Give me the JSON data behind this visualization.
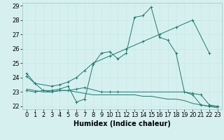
{
  "title": "",
  "xlabel": "Humidex (Indice chaleur)",
  "ylabel": "",
  "bg_color": "#d6f0f0",
  "grid_color": "#c8e8e8",
  "line_color": "#1a7a6e",
  "xlim": [
    -0.5,
    23.5
  ],
  "ylim": [
    21.8,
    29.2
  ],
  "yticks": [
    22,
    23,
    24,
    25,
    26,
    27,
    28,
    29
  ],
  "xticks": [
    0,
    1,
    2,
    3,
    4,
    5,
    6,
    7,
    8,
    9,
    10,
    11,
    12,
    13,
    14,
    15,
    16,
    17,
    18,
    19,
    20,
    21,
    22,
    23
  ],
  "series": [
    {
      "x": [
        0,
        1,
        2,
        3,
        4,
        5,
        6,
        7,
        8,
        9,
        10,
        11,
        12,
        13,
        14,
        15,
        16,
        17,
        18,
        19,
        20,
        21,
        22,
        23
      ],
      "y": [
        24.3,
        23.6,
        23.1,
        23.1,
        23.2,
        23.4,
        22.3,
        22.5,
        24.9,
        25.7,
        25.8,
        25.3,
        25.7,
        28.2,
        28.3,
        28.9,
        26.8,
        26.6,
        25.7,
        23.0,
        22.8,
        22.1,
        22.0,
        22.0
      ],
      "marker": "+"
    },
    {
      "x": [
        0,
        1,
        3,
        4,
        5,
        6,
        7,
        8,
        10,
        12,
        14,
        16,
        18,
        20,
        22
      ],
      "y": [
        24.1,
        23.6,
        23.4,
        23.5,
        23.7,
        24.0,
        24.5,
        25.0,
        25.5,
        26.0,
        26.5,
        27.0,
        27.5,
        28.0,
        25.7
      ],
      "marker": "+"
    },
    {
      "x": [
        0,
        1,
        2,
        3,
        4,
        5,
        6,
        7,
        8,
        9,
        10,
        11,
        12,
        13,
        14,
        15,
        16,
        17,
        18,
        19,
        20,
        21,
        22,
        23
      ],
      "y": [
        23.2,
        23.1,
        23.0,
        23.0,
        23.1,
        23.1,
        23.0,
        22.9,
        22.8,
        22.8,
        22.8,
        22.8,
        22.8,
        22.8,
        22.7,
        22.7,
        22.6,
        22.5,
        22.5,
        22.4,
        22.2,
        22.1,
        22.0,
        21.9
      ],
      "marker": null
    },
    {
      "x": [
        0,
        1,
        2,
        3,
        4,
        5,
        6,
        7,
        9,
        10,
        11,
        19,
        20,
        21,
        22,
        23
      ],
      "y": [
        23.1,
        23.0,
        23.1,
        23.0,
        23.1,
        23.1,
        23.2,
        23.3,
        23.0,
        23.0,
        23.0,
        23.0,
        22.9,
        22.8,
        22.1,
        22.0
      ],
      "marker": "+"
    }
  ],
  "xlabel_fontsize": 7,
  "tick_fontsize": 6
}
